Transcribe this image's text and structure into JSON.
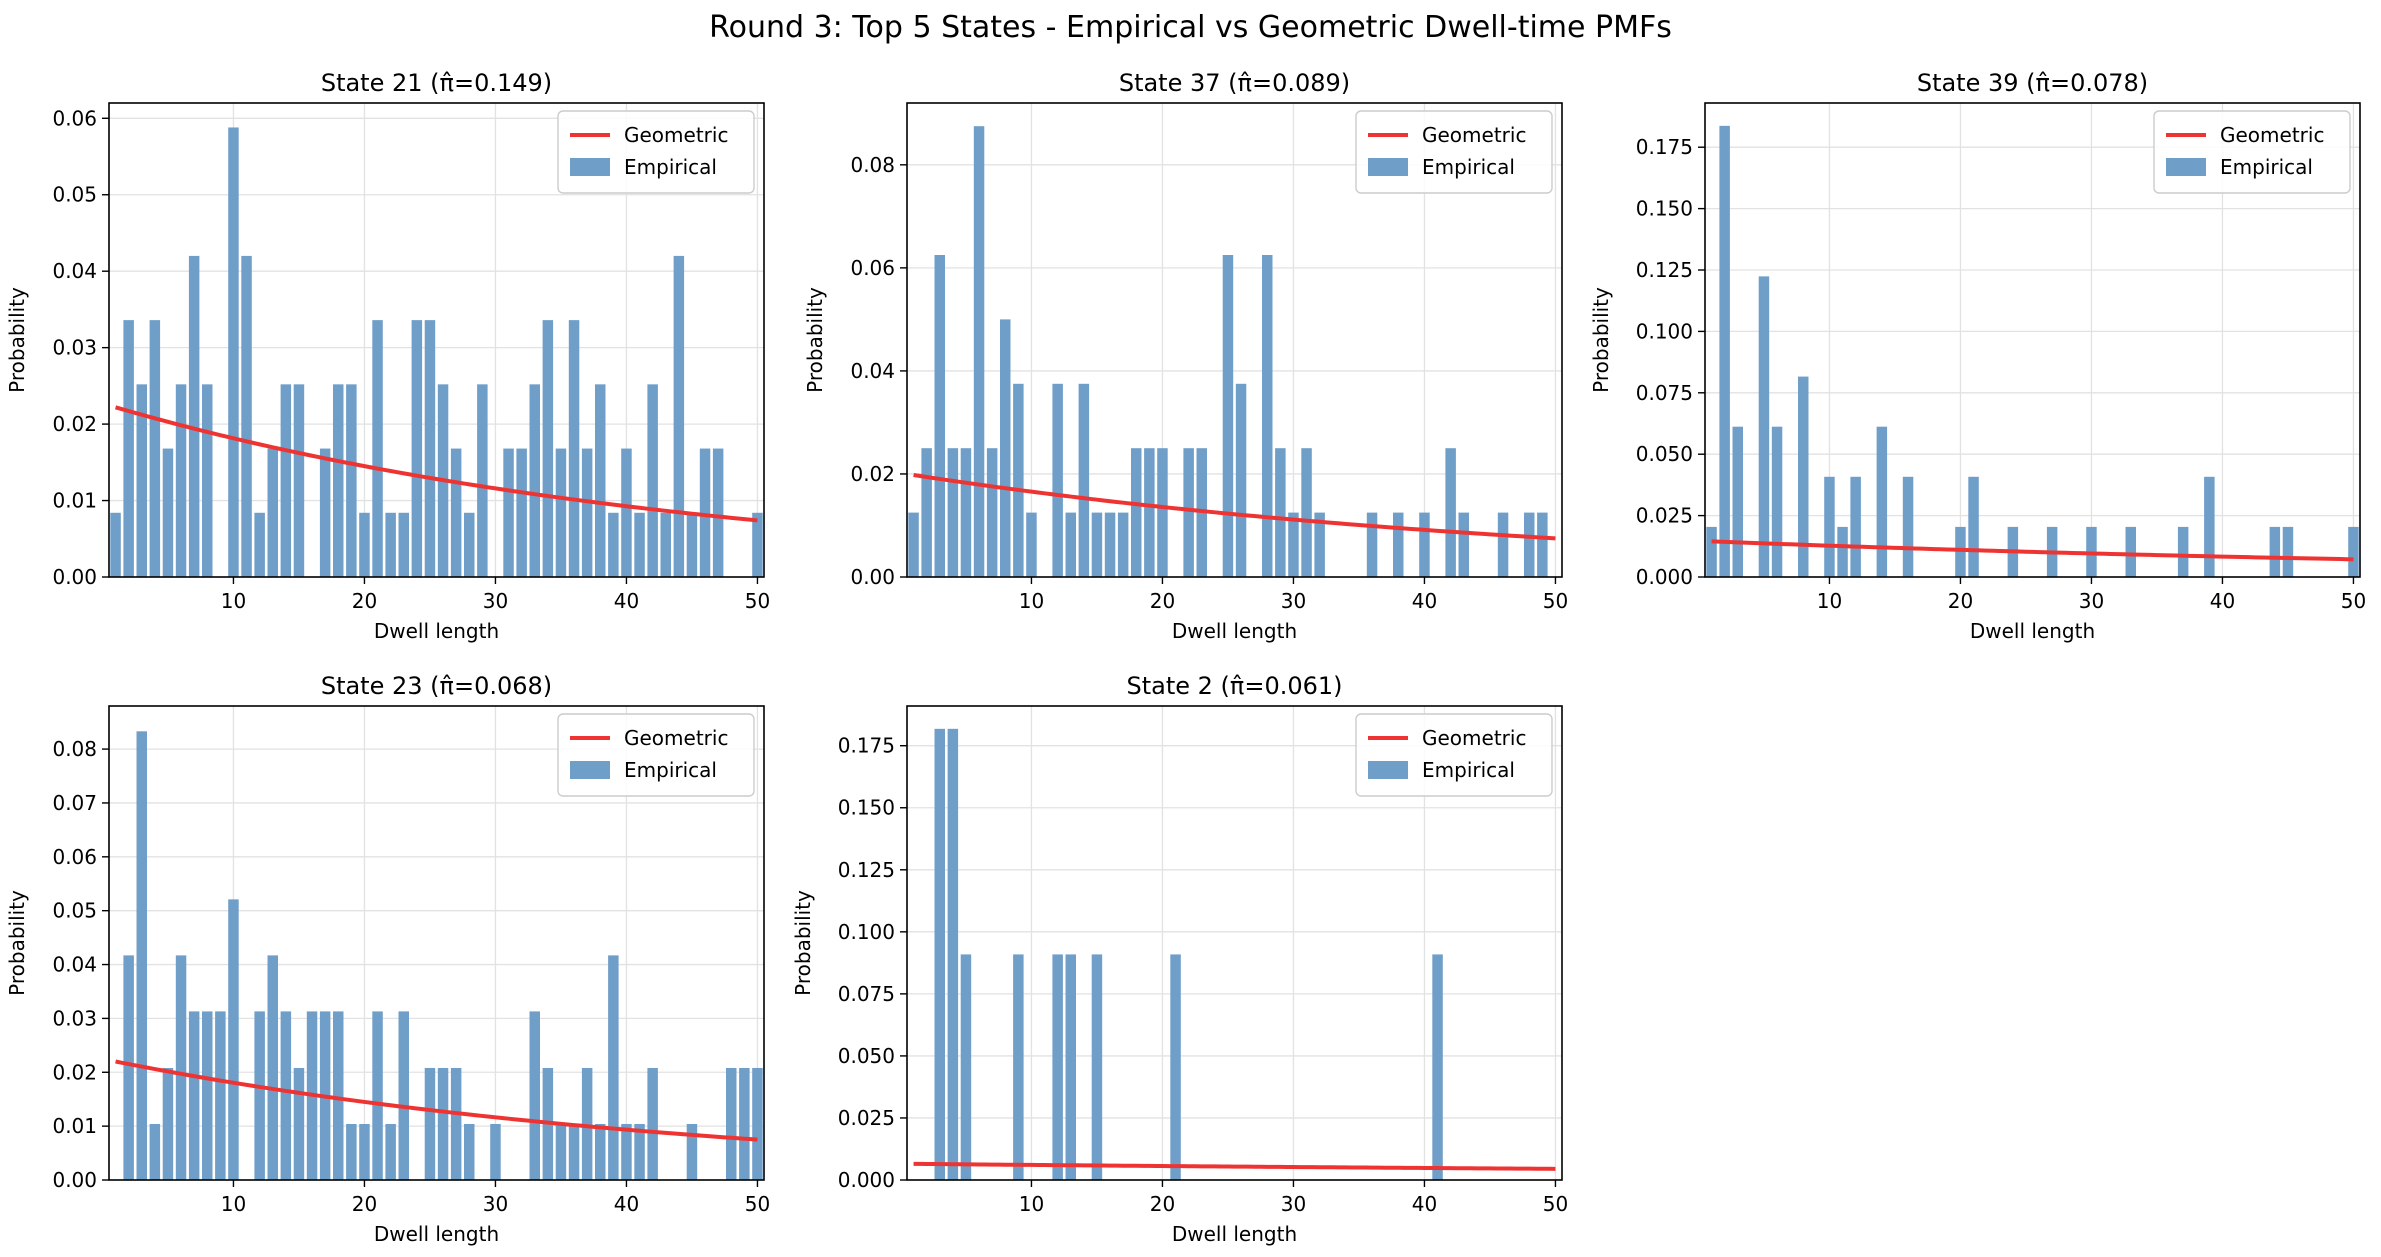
{
  "suptitle": "Round 3: Top 5 States - Empirical vs Geometric Dwell-time PMFs",
  "legend": {
    "geometric": "Geometric",
    "empirical": "Empirical"
  },
  "colors": {
    "bar": "#6f9ec8",
    "line": "#ee3433",
    "grid": "#e2e2e2"
  },
  "chart_data": [
    {
      "type": "bar",
      "title": "State 21 (π̂=0.149)",
      "xlabel": "Dwell length",
      "ylabel": "Probability",
      "xlim": [
        0.5,
        50.5
      ],
      "ylim": [
        0,
        0.062
      ],
      "xticks": [
        10,
        20,
        30,
        40,
        50
      ],
      "yticks": [
        0.0,
        0.01,
        0.02,
        0.03,
        0.04,
        0.05,
        0.06
      ],
      "ytick_format": 2,
      "legend_position": "top-right",
      "x": [
        1,
        2,
        3,
        4,
        5,
        6,
        7,
        8,
        9,
        10,
        11,
        12,
        13,
        14,
        15,
        16,
        17,
        18,
        19,
        20,
        21,
        22,
        23,
        24,
        25,
        26,
        27,
        28,
        29,
        30,
        31,
        32,
        33,
        34,
        35,
        36,
        37,
        38,
        39,
        40,
        41,
        42,
        43,
        44,
        45,
        46,
        47,
        48,
        49,
        50
      ],
      "values": [
        0.0084,
        0.0336,
        0.0252,
        0.0336,
        0.0168,
        0.0252,
        0.042,
        0.0252,
        0,
        0.0588,
        0.042,
        0.0084,
        0.0168,
        0.0252,
        0.0252,
        0,
        0.0168,
        0.0252,
        0.0252,
        0.0084,
        0.0336,
        0.0084,
        0.0084,
        0.0336,
        0.0336,
        0.0252,
        0.0168,
        0.0084,
        0.0252,
        0,
        0.0168,
        0.0168,
        0.0252,
        0.0336,
        0.0168,
        0.0336,
        0.0168,
        0.0252,
        0.0084,
        0.0168,
        0.0084,
        0.0252,
        0.0084,
        0.042,
        0.0084,
        0.0168,
        0.0168,
        0,
        0,
        0.0084
      ],
      "geometric_curve": {
        "x_start": 1,
        "y_start": 0.0222,
        "x_end": 50,
        "y_end": 0.0074
      }
    },
    {
      "type": "bar",
      "title": "State 37 (π̂=0.089)",
      "xlabel": "Dwell length",
      "ylabel": "Probability",
      "xlim": [
        0.5,
        50.5
      ],
      "ylim": [
        0,
        0.092
      ],
      "xticks": [
        10,
        20,
        30,
        40,
        50
      ],
      "yticks": [
        0.0,
        0.02,
        0.04,
        0.06,
        0.08
      ],
      "ytick_format": 2,
      "legend_position": "top-right",
      "x": [
        1,
        2,
        3,
        4,
        5,
        6,
        7,
        8,
        9,
        10,
        11,
        12,
        13,
        14,
        15,
        16,
        17,
        18,
        19,
        20,
        21,
        22,
        23,
        24,
        25,
        26,
        27,
        28,
        29,
        30,
        31,
        32,
        33,
        34,
        35,
        36,
        37,
        38,
        39,
        40,
        41,
        42,
        43,
        44,
        45,
        46,
        47,
        48,
        49,
        50
      ],
      "values": [
        0.0125,
        0.025,
        0.0625,
        0.025,
        0.025,
        0.0875,
        0.025,
        0.05,
        0.0375,
        0.0125,
        0,
        0.0375,
        0.0125,
        0.0375,
        0.0125,
        0.0125,
        0.0125,
        0.025,
        0.025,
        0.025,
        0,
        0.025,
        0.025,
        0,
        0.0625,
        0.0375,
        0,
        0.0625,
        0.025,
        0.0125,
        0.025,
        0.0125,
        0,
        0,
        0,
        0.0125,
        0,
        0.0125,
        0,
        0.0125,
        0,
        0.025,
        0.0125,
        0,
        0,
        0.0125,
        0,
        0.0125,
        0.0125,
        0
      ],
      "geometric_curve": {
        "x_start": 1,
        "y_start": 0.0198,
        "x_end": 50,
        "y_end": 0.0075
      }
    },
    {
      "type": "bar",
      "title": "State 39 (π̂=0.078)",
      "xlabel": "Dwell length",
      "ylabel": "Probability",
      "xlim": [
        0.5,
        50.5
      ],
      "ylim": [
        0,
        0.193
      ],
      "xticks": [
        10,
        20,
        30,
        40,
        50
      ],
      "yticks": [
        0.0,
        0.025,
        0.05,
        0.075,
        0.1,
        0.125,
        0.15,
        0.175
      ],
      "ytick_format": 3,
      "legend_position": "top-right",
      "x": [
        1,
        2,
        3,
        4,
        5,
        6,
        7,
        8,
        9,
        10,
        11,
        12,
        13,
        14,
        15,
        16,
        17,
        18,
        19,
        20,
        21,
        22,
        23,
        24,
        25,
        26,
        27,
        28,
        29,
        30,
        31,
        32,
        33,
        34,
        35,
        36,
        37,
        38,
        39,
        40,
        41,
        42,
        43,
        44,
        45,
        46,
        47,
        48,
        49,
        50
      ],
      "values": [
        0.0204,
        0.1837,
        0.0612,
        0,
        0.1224,
        0.0612,
        0,
        0.0816,
        0,
        0.0408,
        0.0204,
        0.0408,
        0,
        0.0612,
        0,
        0.0408,
        0,
        0,
        0,
        0.0204,
        0.0408,
        0,
        0,
        0.0204,
        0,
        0,
        0.0204,
        0,
        0,
        0.0204,
        0,
        0,
        0.0204,
        0,
        0,
        0,
        0.0204,
        0,
        0.0408,
        0,
        0,
        0,
        0,
        0.0204,
        0.0204,
        0,
        0,
        0,
        0,
        0.0204
      ],
      "geometric_curve": {
        "x_start": 1,
        "y_start": 0.0145,
        "x_end": 50,
        "y_end": 0.0072
      }
    },
    {
      "type": "bar",
      "title": "State 23 (π̂=0.068)",
      "xlabel": "Dwell length",
      "ylabel": "Probability",
      "xlim": [
        0.5,
        50.5
      ],
      "ylim": [
        0,
        0.088
      ],
      "xticks": [
        10,
        20,
        30,
        40,
        50
      ],
      "yticks": [
        0.0,
        0.01,
        0.02,
        0.03,
        0.04,
        0.05,
        0.06,
        0.07,
        0.08
      ],
      "ytick_format": 2,
      "legend_position": "top-right",
      "x": [
        1,
        2,
        3,
        4,
        5,
        6,
        7,
        8,
        9,
        10,
        11,
        12,
        13,
        14,
        15,
        16,
        17,
        18,
        19,
        20,
        21,
        22,
        23,
        24,
        25,
        26,
        27,
        28,
        29,
        30,
        31,
        32,
        33,
        34,
        35,
        36,
        37,
        38,
        39,
        40,
        41,
        42,
        43,
        44,
        45,
        46,
        47,
        48,
        49,
        50
      ],
      "values": [
        0,
        0.0417,
        0.0833,
        0.0104,
        0.0208,
        0.0417,
        0.0313,
        0.0313,
        0.0313,
        0.0521,
        0,
        0.0313,
        0.0417,
        0.0313,
        0.0208,
        0.0313,
        0.0313,
        0.0313,
        0.0104,
        0.0104,
        0.0313,
        0.0104,
        0.0313,
        0,
        0.0208,
        0.0208,
        0.0208,
        0.0104,
        0,
        0.0104,
        0,
        0,
        0.0313,
        0.0208,
        0.0104,
        0.0104,
        0.0208,
        0.0104,
        0.0417,
        0.0104,
        0.0104,
        0.0208,
        0,
        0,
        0.0104,
        0,
        0,
        0.0208,
        0.0208,
        0.0208
      ],
      "geometric_curve": {
        "x_start": 1,
        "y_start": 0.022,
        "x_end": 50,
        "y_end": 0.0075
      }
    },
    {
      "type": "bar",
      "title": "State 2 (π̂=0.061)",
      "xlabel": "Dwell length",
      "ylabel": "Probability",
      "xlim": [
        0.5,
        50.5
      ],
      "ylim": [
        0,
        0.191
      ],
      "xticks": [
        10,
        20,
        30,
        40,
        50
      ],
      "yticks": [
        0.0,
        0.025,
        0.05,
        0.075,
        0.1,
        0.125,
        0.15,
        0.175
      ],
      "ytick_format": 3,
      "legend_position": "top-right",
      "x": [
        1,
        2,
        3,
        4,
        5,
        6,
        7,
        8,
        9,
        10,
        11,
        12,
        13,
        14,
        15,
        16,
        17,
        18,
        19,
        20,
        21,
        22,
        23,
        24,
        25,
        26,
        27,
        28,
        29,
        30,
        31,
        32,
        33,
        34,
        35,
        36,
        37,
        38,
        39,
        40,
        41,
        42,
        43,
        44,
        45,
        46,
        47,
        48,
        49,
        50
      ],
      "values": [
        0,
        0,
        0.1818,
        0.1818,
        0.0909,
        0,
        0,
        0,
        0.0909,
        0,
        0,
        0.0909,
        0.0909,
        0,
        0.0909,
        0,
        0,
        0,
        0,
        0,
        0.0909,
        0,
        0,
        0,
        0,
        0,
        0,
        0,
        0,
        0,
        0,
        0,
        0,
        0,
        0,
        0,
        0,
        0,
        0,
        0,
        0.0909,
        0,
        0,
        0,
        0,
        0,
        0,
        0,
        0,
        0
      ],
      "geometric_curve": {
        "x_start": 1,
        "y_start": 0.0065,
        "x_end": 50,
        "y_end": 0.0045
      }
    }
  ]
}
